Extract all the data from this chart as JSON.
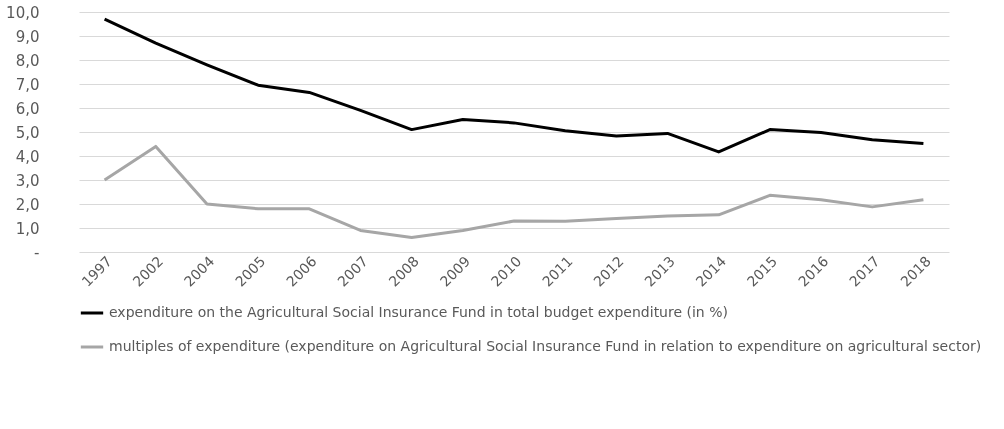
{
  "chart_data": {
    "type": "line",
    "categories": [
      "1997",
      "2002",
      "2004",
      "2005",
      "2006",
      "2007",
      "2008",
      "2009",
      "2010",
      "2011",
      "2012",
      "2013",
      "2014",
      "2015",
      "2016",
      "2017",
      "2018"
    ],
    "series": [
      {
        "name": "expenditure on the Agricultural Social Insurance Fund in total budget expenditure (in %)",
        "color": "#000000",
        "values": [
          9.7,
          8.7,
          7.8,
          6.95,
          6.65,
          5.9,
          5.1,
          5.52,
          5.38,
          5.05,
          4.83,
          4.94,
          4.17,
          5.1,
          4.98,
          4.68,
          4.52
        ]
      },
      {
        "name": "multiples of expenditure (expenditure on Agricultural Social Insurance Fund in relation to expenditure on agricultural sector)",
        "color": "#a6a6a6",
        "values": [
          3.0,
          4.4,
          2.0,
          1.8,
          1.8,
          0.9,
          0.6,
          0.9,
          1.29,
          1.28,
          1.4,
          1.5,
          1.55,
          2.36,
          2.18,
          1.88,
          2.18
        ]
      }
    ],
    "ylim": [
      0,
      10
    ],
    "yticks": [
      {
        "value": 0,
        "label": "-"
      },
      {
        "value": 1,
        "label": "1,0"
      },
      {
        "value": 2,
        "label": "2,0"
      },
      {
        "value": 3,
        "label": "3,0"
      },
      {
        "value": 4,
        "label": "4,0"
      },
      {
        "value": 5,
        "label": "5,0"
      },
      {
        "value": 6,
        "label": "6,0"
      },
      {
        "value": 7,
        "label": "7,0"
      },
      {
        "value": 8,
        "label": "8,0"
      },
      {
        "value": 9,
        "label": "9,0"
      },
      {
        "value": 10,
        "label": "10,0"
      }
    ],
    "grid": "y",
    "legend": "bottom",
    "marker": "none",
    "line_style": "solid"
  }
}
